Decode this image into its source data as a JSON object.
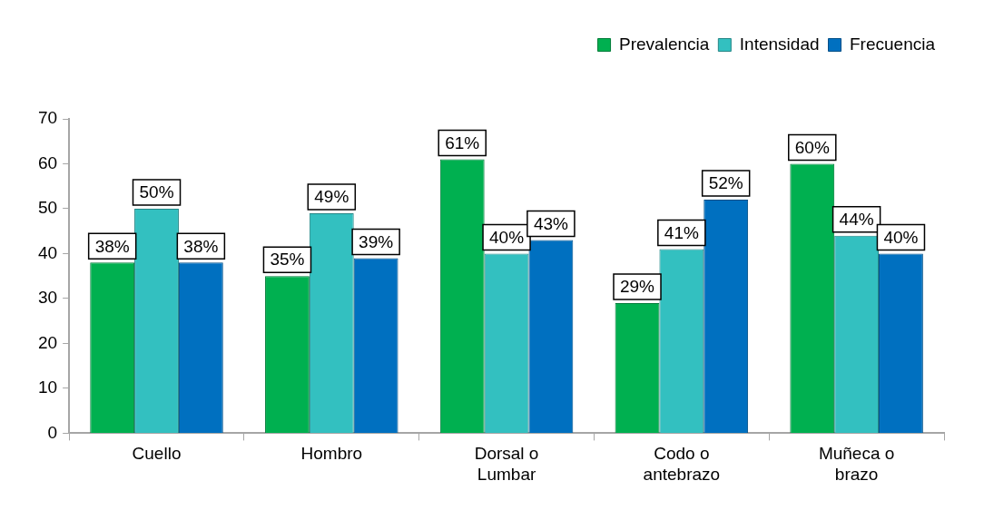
{
  "chart_data": {
    "type": "bar",
    "categories": [
      "Cuello",
      "Hombro",
      "Dorsal o Lumbar",
      "Codo o antebrazo",
      "Muñeca o brazo"
    ],
    "series": [
      {
        "name": "Prevalencia",
        "color": "#00b050",
        "values": [
          38,
          35,
          61,
          29,
          60
        ],
        "value_labels": [
          "38%",
          "35%",
          "61%",
          "29%",
          "60%"
        ]
      },
      {
        "name": "Intensidad",
        "color": "#33c0c0",
        "values": [
          50,
          49,
          40,
          41,
          44
        ],
        "value_labels": [
          "50%",
          "49%",
          "40%",
          "41%",
          "44%"
        ]
      },
      {
        "name": "Frecuencia",
        "color": "#0070c0",
        "values": [
          38,
          39,
          43,
          52,
          40
        ],
        "value_labels": [
          "38%",
          "39%",
          "43%",
          "52%",
          "40%"
        ]
      }
    ],
    "ylim": [
      0,
      70
    ],
    "yticks": [
      0,
      10,
      20,
      30,
      40,
      50,
      60,
      70
    ],
    "grid": false,
    "legend": "top right"
  }
}
